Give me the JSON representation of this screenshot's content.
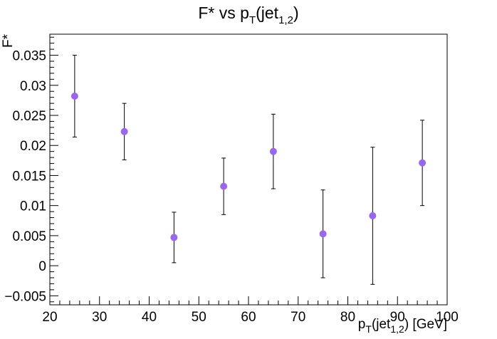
{
  "chart_data": {
    "type": "scatter",
    "title": {
      "main": "F* vs p",
      "sub1": "T",
      "mid": "(jet",
      "sub2": "1,2",
      "end": ")"
    },
    "xlabel": {
      "main": "p",
      "sub1": "T",
      "mid": "(jet",
      "sub2": "1,2",
      "end": ") [GeV]"
    },
    "ylabel": "F*",
    "xlim": [
      20,
      100
    ],
    "ylim": [
      -0.0065,
      0.0385
    ],
    "x_ticks": [
      20,
      30,
      40,
      50,
      60,
      70,
      80,
      90,
      100
    ],
    "x_tick_labels": [
      "20",
      "30",
      "40",
      "50",
      "60",
      "70",
      "80",
      "90",
      "100"
    ],
    "y_ticks": [
      -0.005,
      0,
      0.005,
      0.01,
      0.015,
      0.02,
      0.025,
      0.03,
      0.035
    ],
    "y_tick_labels": [
      "−0.005",
      "0",
      "0.005",
      "0.01",
      "0.015",
      "0.02",
      "0.025",
      "0.03",
      "0.035"
    ],
    "marker_color": "#9966ee",
    "grid": false,
    "points": [
      {
        "x": 25,
        "y": 0.0282,
        "err": 0.0068
      },
      {
        "x": 35,
        "y": 0.0223,
        "err": 0.0047
      },
      {
        "x": 45,
        "y": 0.0047,
        "err": 0.0042
      },
      {
        "x": 55,
        "y": 0.0132,
        "err": 0.0047
      },
      {
        "x": 65,
        "y": 0.019,
        "err": 0.0062
      },
      {
        "x": 75,
        "y": 0.0053,
        "err": 0.0073
      },
      {
        "x": 85,
        "y": 0.0083,
        "err": 0.0114
      },
      {
        "x": 95,
        "y": 0.0171,
        "err": 0.0071
      }
    ]
  }
}
